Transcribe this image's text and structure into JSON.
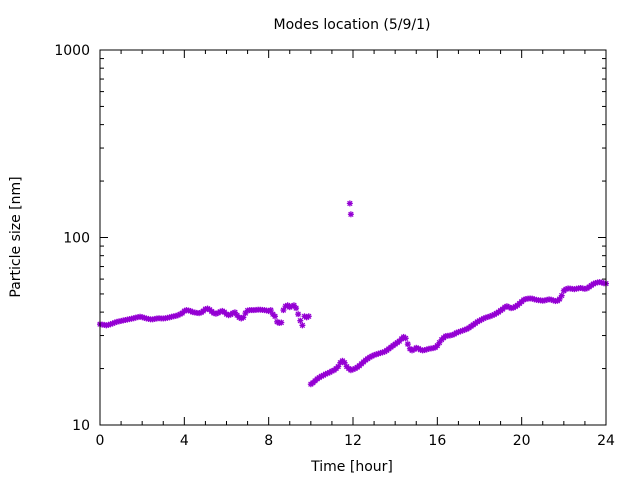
{
  "chart_data": {
    "type": "scatter",
    "title": "Modes location (5/9/1)",
    "xlabel": "Time [hour]",
    "ylabel": "Particle size [nm]",
    "xlim": [
      0,
      24
    ],
    "ylim": [
      10,
      1000
    ],
    "yscale": "log",
    "x_ticks": [
      0,
      4,
      8,
      12,
      16,
      20,
      24
    ],
    "x_tick_labels": [
      "0",
      "4",
      "8",
      "12",
      "16",
      "20",
      "24"
    ],
    "y_ticks": [
      10,
      100,
      1000
    ],
    "y_tick_labels": [
      "10",
      "100",
      "1000"
    ],
    "grid": false,
    "legend": "none",
    "marker_color": "#9400d3",
    "series": [
      {
        "points": [
          [
            0.0,
            34.5
          ],
          [
            0.1,
            34.3
          ],
          [
            0.2,
            34.2
          ],
          [
            0.3,
            34.0
          ],
          [
            0.4,
            34.2
          ],
          [
            0.5,
            34.5
          ],
          [
            0.6,
            34.8
          ],
          [
            0.7,
            35.2
          ],
          [
            0.8,
            35.5
          ],
          [
            0.9,
            35.7
          ],
          [
            1.0,
            35.9
          ],
          [
            1.1,
            36.1
          ],
          [
            1.2,
            36.3
          ],
          [
            1.3,
            36.5
          ],
          [
            1.4,
            36.7
          ],
          [
            1.5,
            36.9
          ],
          [
            1.6,
            37.1
          ],
          [
            1.7,
            37.4
          ],
          [
            1.8,
            37.6
          ],
          [
            1.9,
            37.8
          ],
          [
            2.0,
            37.6
          ],
          [
            2.1,
            37.3
          ],
          [
            2.2,
            37.0
          ],
          [
            2.3,
            36.8
          ],
          [
            2.4,
            36.6
          ],
          [
            2.5,
            36.6
          ],
          [
            2.6,
            36.8
          ],
          [
            2.7,
            37.0
          ],
          [
            2.8,
            37.1
          ],
          [
            2.9,
            37.0
          ],
          [
            3.0,
            37.0
          ],
          [
            3.1,
            37.1
          ],
          [
            3.2,
            37.3
          ],
          [
            3.3,
            37.5
          ],
          [
            3.4,
            37.8
          ],
          [
            3.5,
            38.0
          ],
          [
            3.6,
            38.2
          ],
          [
            3.7,
            38.5
          ],
          [
            3.8,
            39.0
          ],
          [
            3.9,
            39.5
          ],
          [
            4.0,
            40.5
          ],
          [
            4.1,
            41.0
          ],
          [
            4.2,
            40.8
          ],
          [
            4.3,
            40.5
          ],
          [
            4.4,
            40.0
          ],
          [
            4.5,
            39.8
          ],
          [
            4.6,
            39.6
          ],
          [
            4.7,
            39.5
          ],
          [
            4.8,
            39.8
          ],
          [
            4.9,
            40.5
          ],
          [
            5.0,
            41.5
          ],
          [
            5.1,
            41.8
          ],
          [
            5.2,
            41.2
          ],
          [
            5.3,
            40.3
          ],
          [
            5.4,
            39.5
          ],
          [
            5.5,
            39.2
          ],
          [
            5.6,
            39.6
          ],
          [
            5.7,
            40.2
          ],
          [
            5.8,
            40.6
          ],
          [
            5.9,
            40.0
          ],
          [
            6.0,
            39.0
          ],
          [
            6.1,
            38.5
          ],
          [
            6.2,
            38.8
          ],
          [
            6.3,
            39.5
          ],
          [
            6.4,
            39.9
          ],
          [
            6.5,
            38.5
          ],
          [
            6.6,
            37.5
          ],
          [
            6.7,
            37.0
          ],
          [
            6.8,
            37.5
          ],
          [
            6.9,
            39.5
          ],
          [
            7.0,
            40.8
          ],
          [
            7.1,
            41.0
          ],
          [
            7.2,
            41.0
          ],
          [
            7.3,
            41.0
          ],
          [
            7.4,
            41.1
          ],
          [
            7.5,
            41.2
          ],
          [
            7.6,
            41.2
          ],
          [
            7.7,
            41.1
          ],
          [
            7.8,
            41.0
          ],
          [
            7.9,
            40.8
          ],
          [
            8.0,
            40.5
          ],
          [
            8.1,
            41.0
          ],
          [
            8.2,
            39.0
          ],
          [
            8.3,
            38.0
          ],
          [
            8.4,
            35.5
          ],
          [
            8.5,
            35.0
          ],
          [
            8.6,
            35.2
          ],
          [
            8.7,
            41.0
          ],
          [
            8.8,
            43.0
          ],
          [
            8.9,
            43.5
          ],
          [
            9.0,
            42.5
          ],
          [
            9.1,
            43.0
          ],
          [
            9.2,
            43.5
          ],
          [
            9.3,
            42.0
          ],
          [
            9.4,
            39.0
          ],
          [
            9.5,
            36.0
          ],
          [
            9.6,
            34.0
          ],
          [
            9.7,
            38.0
          ],
          [
            9.8,
            37.5
          ],
          [
            9.9,
            38.0
          ],
          [
            10.0,
            16.5
          ],
          [
            10.1,
            16.8
          ],
          [
            10.2,
            17.2
          ],
          [
            10.3,
            17.6
          ],
          [
            10.4,
            17.9
          ],
          [
            10.5,
            18.2
          ],
          [
            10.6,
            18.4
          ],
          [
            10.7,
            18.7
          ],
          [
            10.8,
            18.9
          ],
          [
            10.9,
            19.1
          ],
          [
            11.0,
            19.4
          ],
          [
            11.1,
            19.6
          ],
          [
            11.2,
            20.0
          ],
          [
            11.3,
            20.5
          ],
          [
            11.4,
            21.5
          ],
          [
            11.5,
            22.0
          ],
          [
            11.6,
            21.5
          ],
          [
            11.7,
            20.5
          ],
          [
            11.8,
            20.0
          ],
          [
            11.9,
            19.6
          ],
          [
            12.0,
            19.8
          ],
          [
            12.1,
            20.0
          ],
          [
            12.2,
            20.3
          ],
          [
            12.3,
            20.7
          ],
          [
            12.4,
            21.2
          ],
          [
            12.5,
            21.7
          ],
          [
            12.6,
            22.2
          ],
          [
            12.7,
            22.6
          ],
          [
            12.8,
            23.0
          ],
          [
            12.9,
            23.3
          ],
          [
            13.0,
            23.6
          ],
          [
            13.1,
            23.8
          ],
          [
            13.2,
            24.0
          ],
          [
            13.3,
            24.2
          ],
          [
            13.4,
            24.4
          ],
          [
            13.5,
            24.6
          ],
          [
            13.6,
            25.0
          ],
          [
            13.7,
            25.5
          ],
          [
            13.8,
            26.0
          ],
          [
            13.9,
            26.5
          ],
          [
            14.0,
            27.0
          ],
          [
            14.1,
            27.5
          ],
          [
            14.2,
            28.0
          ],
          [
            14.3,
            28.8
          ],
          [
            14.4,
            29.5
          ],
          [
            14.5,
            29.0
          ],
          [
            14.6,
            27.0
          ],
          [
            14.7,
            25.5
          ],
          [
            14.8,
            25.0
          ],
          [
            14.9,
            25.3
          ],
          [
            15.0,
            25.8
          ],
          [
            15.1,
            25.6
          ],
          [
            15.2,
            25.2
          ],
          [
            15.3,
            25.0
          ],
          [
            15.4,
            25.1
          ],
          [
            15.5,
            25.3
          ],
          [
            15.6,
            25.5
          ],
          [
            15.7,
            25.6
          ],
          [
            15.8,
            25.7
          ],
          [
            15.9,
            25.9
          ],
          [
            16.0,
            26.5
          ],
          [
            16.1,
            27.5
          ],
          [
            16.2,
            28.5
          ],
          [
            16.3,
            29.2
          ],
          [
            16.4,
            29.8
          ],
          [
            16.5,
            29.9
          ],
          [
            16.6,
            30.0
          ],
          [
            16.7,
            30.2
          ],
          [
            16.8,
            30.5
          ],
          [
            16.9,
            31.0
          ],
          [
            17.0,
            31.3
          ],
          [
            17.1,
            31.6
          ],
          [
            17.2,
            31.9
          ],
          [
            17.3,
            32.2
          ],
          [
            17.4,
            32.5
          ],
          [
            17.5,
            33.0
          ],
          [
            17.6,
            33.6
          ],
          [
            17.7,
            34.2
          ],
          [
            17.8,
            34.8
          ],
          [
            17.9,
            35.5
          ],
          [
            18.0,
            36.0
          ],
          [
            18.1,
            36.5
          ],
          [
            18.2,
            37.0
          ],
          [
            18.3,
            37.4
          ],
          [
            18.4,
            37.7
          ],
          [
            18.5,
            38.0
          ],
          [
            18.6,
            38.4
          ],
          [
            18.7,
            38.8
          ],
          [
            18.8,
            39.4
          ],
          [
            18.9,
            40.0
          ],
          [
            19.0,
            40.8
          ],
          [
            19.1,
            41.5
          ],
          [
            19.2,
            42.5
          ],
          [
            19.3,
            43.0
          ],
          [
            19.4,
            42.5
          ],
          [
            19.5,
            42.0
          ],
          [
            19.6,
            42.2
          ],
          [
            19.7,
            42.8
          ],
          [
            19.8,
            43.5
          ],
          [
            19.9,
            44.5
          ],
          [
            20.0,
            45.5
          ],
          [
            20.1,
            46.5
          ],
          [
            20.2,
            47.0
          ],
          [
            20.3,
            47.2
          ],
          [
            20.4,
            47.3
          ],
          [
            20.5,
            47.2
          ],
          [
            20.6,
            46.8
          ],
          [
            20.7,
            46.5
          ],
          [
            20.8,
            46.3
          ],
          [
            20.9,
            46.2
          ],
          [
            21.0,
            46.0
          ],
          [
            21.1,
            46.2
          ],
          [
            21.2,
            46.5
          ],
          [
            21.3,
            46.8
          ],
          [
            21.4,
            46.6
          ],
          [
            21.5,
            46.2
          ],
          [
            21.6,
            45.8
          ],
          [
            21.7,
            46.0
          ],
          [
            21.8,
            47.0
          ],
          [
            21.9,
            49.0
          ],
          [
            22.0,
            52.0
          ],
          [
            22.1,
            53.0
          ],
          [
            22.2,
            53.5
          ],
          [
            22.3,
            53.4
          ],
          [
            22.4,
            53.2
          ],
          [
            22.5,
            53.0
          ],
          [
            22.6,
            53.3
          ],
          [
            22.7,
            53.6
          ],
          [
            22.8,
            53.8
          ],
          [
            22.9,
            53.5
          ],
          [
            23.0,
            53.2
          ],
          [
            23.1,
            53.6
          ],
          [
            23.2,
            54.5
          ],
          [
            23.3,
            55.5
          ],
          [
            23.4,
            56.5
          ],
          [
            23.5,
            57.2
          ],
          [
            23.6,
            57.6
          ],
          [
            23.7,
            57.8
          ],
          [
            23.8,
            57.5
          ],
          [
            23.9,
            57.0
          ],
          [
            24.0,
            56.8
          ],
          [
            11.85,
            152.0
          ],
          [
            11.9,
            133.0
          ]
        ]
      }
    ]
  }
}
